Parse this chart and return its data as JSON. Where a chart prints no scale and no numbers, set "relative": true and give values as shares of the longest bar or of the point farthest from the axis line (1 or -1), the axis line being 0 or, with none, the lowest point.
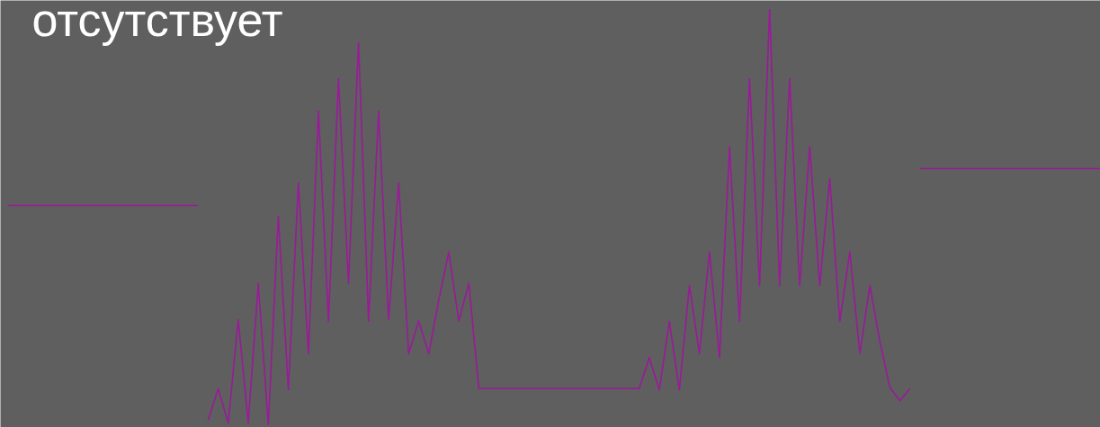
{
  "chart_data": {
    "type": "line",
    "title": "отсутствует",
    "relative": true,
    "tick_labels": false,
    "grid": false,
    "categories": [
      null,
      null,
      null,
      null,
      null,
      null,
      null,
      null,
      null,
      null,
      null,
      null,
      null,
      null,
      null,
      null,
      null,
      null,
      null,
      null,
      null,
      null,
      null,
      null,
      null,
      null,
      null,
      null,
      null,
      null,
      null,
      null,
      null,
      null,
      null,
      null,
      null,
      null,
      null,
      null,
      null,
      null,
      null,
      null,
      null,
      null,
      null,
      null,
      null,
      null,
      null,
      null,
      null,
      null,
      null,
      null,
      null,
      null,
      null,
      null,
      null,
      null,
      null,
      null,
      null,
      null,
      null,
      null,
      null,
      null,
      null,
      null,
      null,
      null,
      null,
      null,
      null,
      null,
      null,
      null,
      null,
      null,
      null,
      null,
      null,
      null,
      null,
      null,
      null,
      null,
      null,
      null,
      null,
      null,
      null,
      null,
      null,
      null,
      null,
      null,
      null,
      null,
      null,
      null,
      null,
      null,
      null,
      null,
      null,
      null
    ],
    "series": [
      {
        "color": "#9a1a9a",
        "values": [
          0.528,
          0.528,
          0.528,
          0.528,
          0.528,
          0.528,
          0.528,
          0.528,
          0.528,
          0.528,
          0.528,
          0.528,
          0.528,
          0.528,
          0.528,
          0.528,
          0.528,
          0.528,
          0.528,
          0.528,
          null,
          null,
          null,
          null,
          null,
          null,
          null,
          null,
          null,
          null,
          null,
          null,
          null,
          null,
          null,
          null,
          null,
          null,
          null,
          null,
          null,
          null,
          null,
          null,
          null,
          null,
          null,
          null,
          null,
          null,
          null,
          null,
          null,
          null,
          null,
          null,
          null,
          null,
          null,
          null,
          null,
          null,
          null,
          null,
          null,
          null,
          null,
          null,
          null,
          null,
          null,
          null,
          null,
          null,
          null,
          null,
          null,
          null,
          null,
          null,
          null,
          null,
          null,
          null,
          null,
          null,
          null,
          null,
          null,
          null,
          null,
          null,
          null,
          null,
          null,
          null,
          null,
          null,
          null,
          null,
          null,
          null,
          null,
          null,
          null,
          null,
          null,
          null,
          null,
          null
        ]
      },
      {
        "color": "#9a1a9a",
        "values": [
          null,
          null,
          null,
          null,
          null,
          null,
          null,
          null,
          null,
          null,
          null,
          null,
          null,
          null,
          null,
          null,
          null,
          null,
          null,
          null,
          0.011,
          0.087,
          0.004,
          0.253,
          0.004,
          0.34,
          0,
          0.502,
          0.084,
          0.582,
          0.171,
          0.755,
          0.249,
          0.833,
          0.34,
          0.92,
          0.249,
          0.755,
          0.253,
          0.582,
          0.171,
          0.25,
          0.171,
          0.3,
          0.416,
          0.25,
          0.34,
          0.087,
          0.087,
          0.087,
          0.087,
          0.087,
          0.087,
          0.087,
          0.087,
          0.087,
          0.087,
          0.087,
          0.087,
          0.087,
          0.087,
          0.087,
          0.087,
          0.087,
          0.162,
          0.084,
          0.249,
          0.084,
          0.335,
          0.171,
          0.416,
          0.162,
          0.669,
          0.249,
          0.833,
          0.335,
          1.0,
          0.335,
          0.833,
          0.335,
          0.669,
          0.335,
          0.593,
          0.249,
          0.416,
          0.171,
          0.335,
          0.2,
          0.09,
          0.058,
          0.087,
          null,
          null,
          null,
          null,
          null,
          null,
          null,
          null,
          null,
          null,
          null,
          null,
          null,
          null,
          null,
          null,
          null,
          null,
          null
        ]
      },
      {
        "color": "#9a1a9a",
        "values": [
          null,
          null,
          null,
          null,
          null,
          null,
          null,
          null,
          null,
          null,
          null,
          null,
          null,
          null,
          null,
          null,
          null,
          null,
          null,
          null,
          null,
          null,
          null,
          null,
          null,
          null,
          null,
          null,
          null,
          null,
          null,
          null,
          null,
          null,
          null,
          null,
          null,
          null,
          null,
          null,
          null,
          null,
          null,
          null,
          null,
          null,
          null,
          null,
          null,
          null,
          null,
          null,
          null,
          null,
          null,
          null,
          null,
          null,
          null,
          null,
          null,
          null,
          null,
          null,
          null,
          null,
          null,
          null,
          null,
          null,
          null,
          null,
          null,
          null,
          null,
          null,
          null,
          null,
          null,
          null,
          null,
          null,
          null,
          null,
          null,
          null,
          null,
          null,
          null,
          null,
          null,
          0.617,
          0.617,
          0.617,
          0.617,
          0.617,
          0.617,
          0.617,
          0.617,
          0.617,
          0.617,
          0.617,
          0.617,
          0.617,
          0.617,
          0.617,
          0.617,
          0.617,
          0.617,
          0.617
        ]
      }
    ]
  }
}
